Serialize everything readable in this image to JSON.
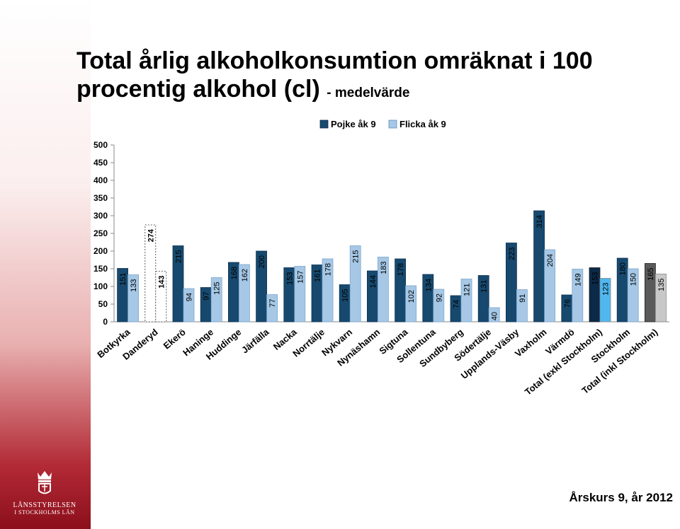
{
  "slide": {
    "title_main": "Total årlig alkoholkonsumtion omräknat i 100 procentig alkohol (cl)",
    "title_suffix": "- medelvärde",
    "footer": "Årskurs 9, år 2012",
    "logo_name": "LÄNSSTYRELSEN",
    "logo_sub": "I STOCKHOLMS LÄN"
  },
  "chart_data": {
    "type": "bar",
    "ylim": [
      0,
      500
    ],
    "yticks": [
      0,
      50,
      100,
      150,
      200,
      250,
      300,
      350,
      400,
      450,
      500
    ],
    "ytick_labels": [
      "0",
      "50",
      "100",
      "150",
      "200",
      "250",
      "300",
      "350",
      "400",
      "450",
      "500"
    ],
    "legend_position": "top",
    "grid": false,
    "categories": [
      "Botkyrka",
      "Danderyd",
      "Ekerö",
      "Haninge",
      "Huddinge",
      "Järfälla",
      "Nacka",
      "Norrtälje",
      "Nykvarn",
      "Nynäshamn",
      "Sigtuna",
      "Sollentuna",
      "Sundbyberg",
      "Södertälje",
      "Upplands-Väsby",
      "Vaxholm",
      "Värmdö",
      "Total (exkl Stockholm)",
      "Stockholm",
      "Total (inkl Stockholm)"
    ],
    "series": [
      {
        "name": "Pojke åk 9",
        "color": "#17496e",
        "values": [
          151,
          274,
          215,
          97,
          168,
          200,
          153,
          161,
          105,
          144,
          178,
          134,
          74,
          131,
          223,
          314,
          76,
          153,
          180,
          165
        ]
      },
      {
        "name": "Flicka åk 9",
        "color": "#a6c8e6",
        "values": [
          133,
          143,
          94,
          125,
          162,
          77,
          157,
          178,
          215,
          183,
          102,
          92,
          121,
          40,
          91,
          204,
          149,
          123,
          150,
          135
        ]
      }
    ],
    "special_styles": {
      "Danderyd": "dashed-outline",
      "Total (exkl Stockholm)": {
        "pojke": "#0b2a4a",
        "flicka": "#4fb8f0"
      },
      "Total (inkl Stockholm)": {
        "pojke": "#5a5a5a",
        "flicka": "#c8c8c8"
      }
    }
  }
}
